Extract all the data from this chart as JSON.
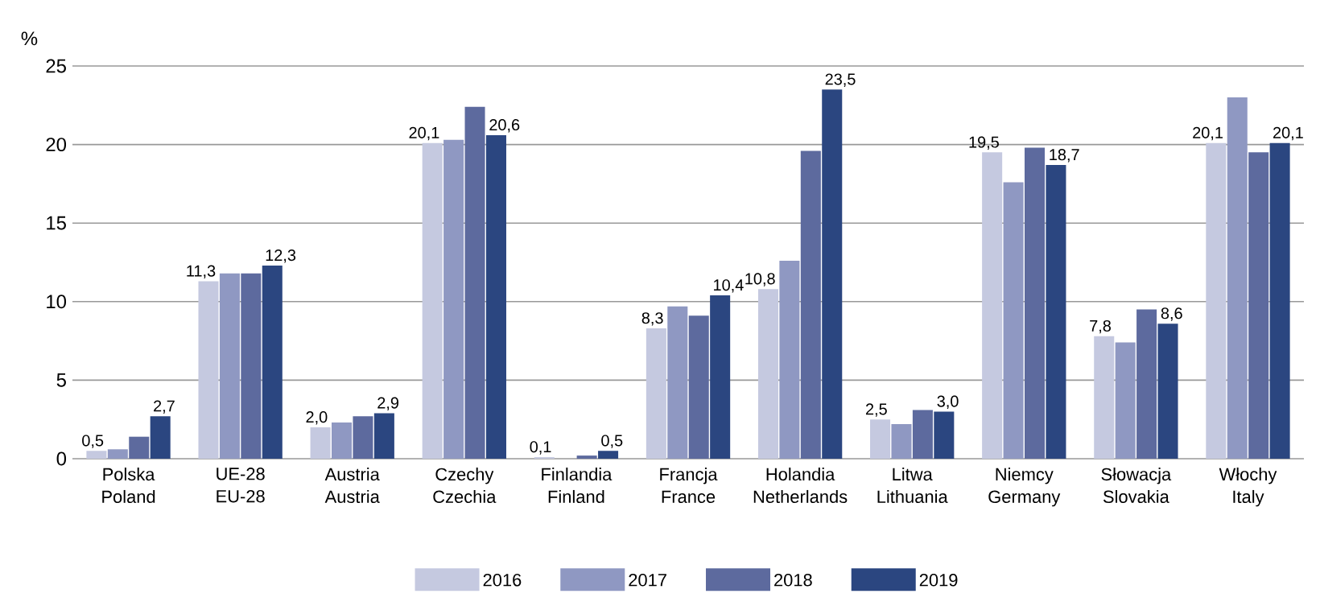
{
  "chart_data": {
    "type": "bar",
    "ylabel": "%",
    "categories": [
      "Polska\nPoland",
      "UE-28\nEU-28",
      "Austria\nAustria",
      "Czechy\nCzechia",
      "Finlandia\nFinland",
      "Francja\nFrance",
      "Holandia\nNetherlands",
      "Litwa\nLithuania",
      "Niemcy\nGermany",
      "Słowacja\nSlovakia",
      "Włochy\nItaly"
    ],
    "series": [
      {
        "name": "2016",
        "color": "#c5c9e0",
        "values": [
          0.5,
          11.3,
          2.0,
          20.1,
          0.1,
          8.3,
          10.8,
          2.5,
          19.5,
          7.8,
          20.1
        ],
        "value_labels": [
          "0,5",
          "11,3",
          "2,0",
          "20,1",
          "0,1",
          "8,3",
          "10,8",
          "2,5",
          "19,5",
          "7,8",
          "20,1"
        ]
      },
      {
        "name": "2017",
        "color": "#8f98c2",
        "values": [
          0.6,
          11.8,
          2.3,
          20.3,
          null,
          9.7,
          12.6,
          2.2,
          17.6,
          7.4,
          23.0
        ]
      },
      {
        "name": "2018",
        "color": "#5d6a9e",
        "values": [
          1.4,
          11.8,
          2.7,
          22.4,
          0.2,
          9.1,
          19.6,
          3.1,
          19.8,
          9.5,
          19.5
        ]
      },
      {
        "name": "2019",
        "color": "#2b4680",
        "values": [
          2.7,
          12.3,
          2.9,
          20.6,
          0.5,
          10.4,
          23.5,
          3.0,
          18.7,
          8.6,
          20.1
        ],
        "value_labels": [
          "2,7",
          "12,3",
          "2,9",
          "20,6",
          "0,5",
          "10,4",
          "23,5",
          "3,0",
          "18,7",
          "8,6",
          "20,1"
        ]
      }
    ],
    "ylim": [
      0,
      25
    ],
    "yticks": [
      0,
      5,
      10,
      15,
      20,
      25
    ],
    "grid": "y",
    "legend": "bottom"
  }
}
